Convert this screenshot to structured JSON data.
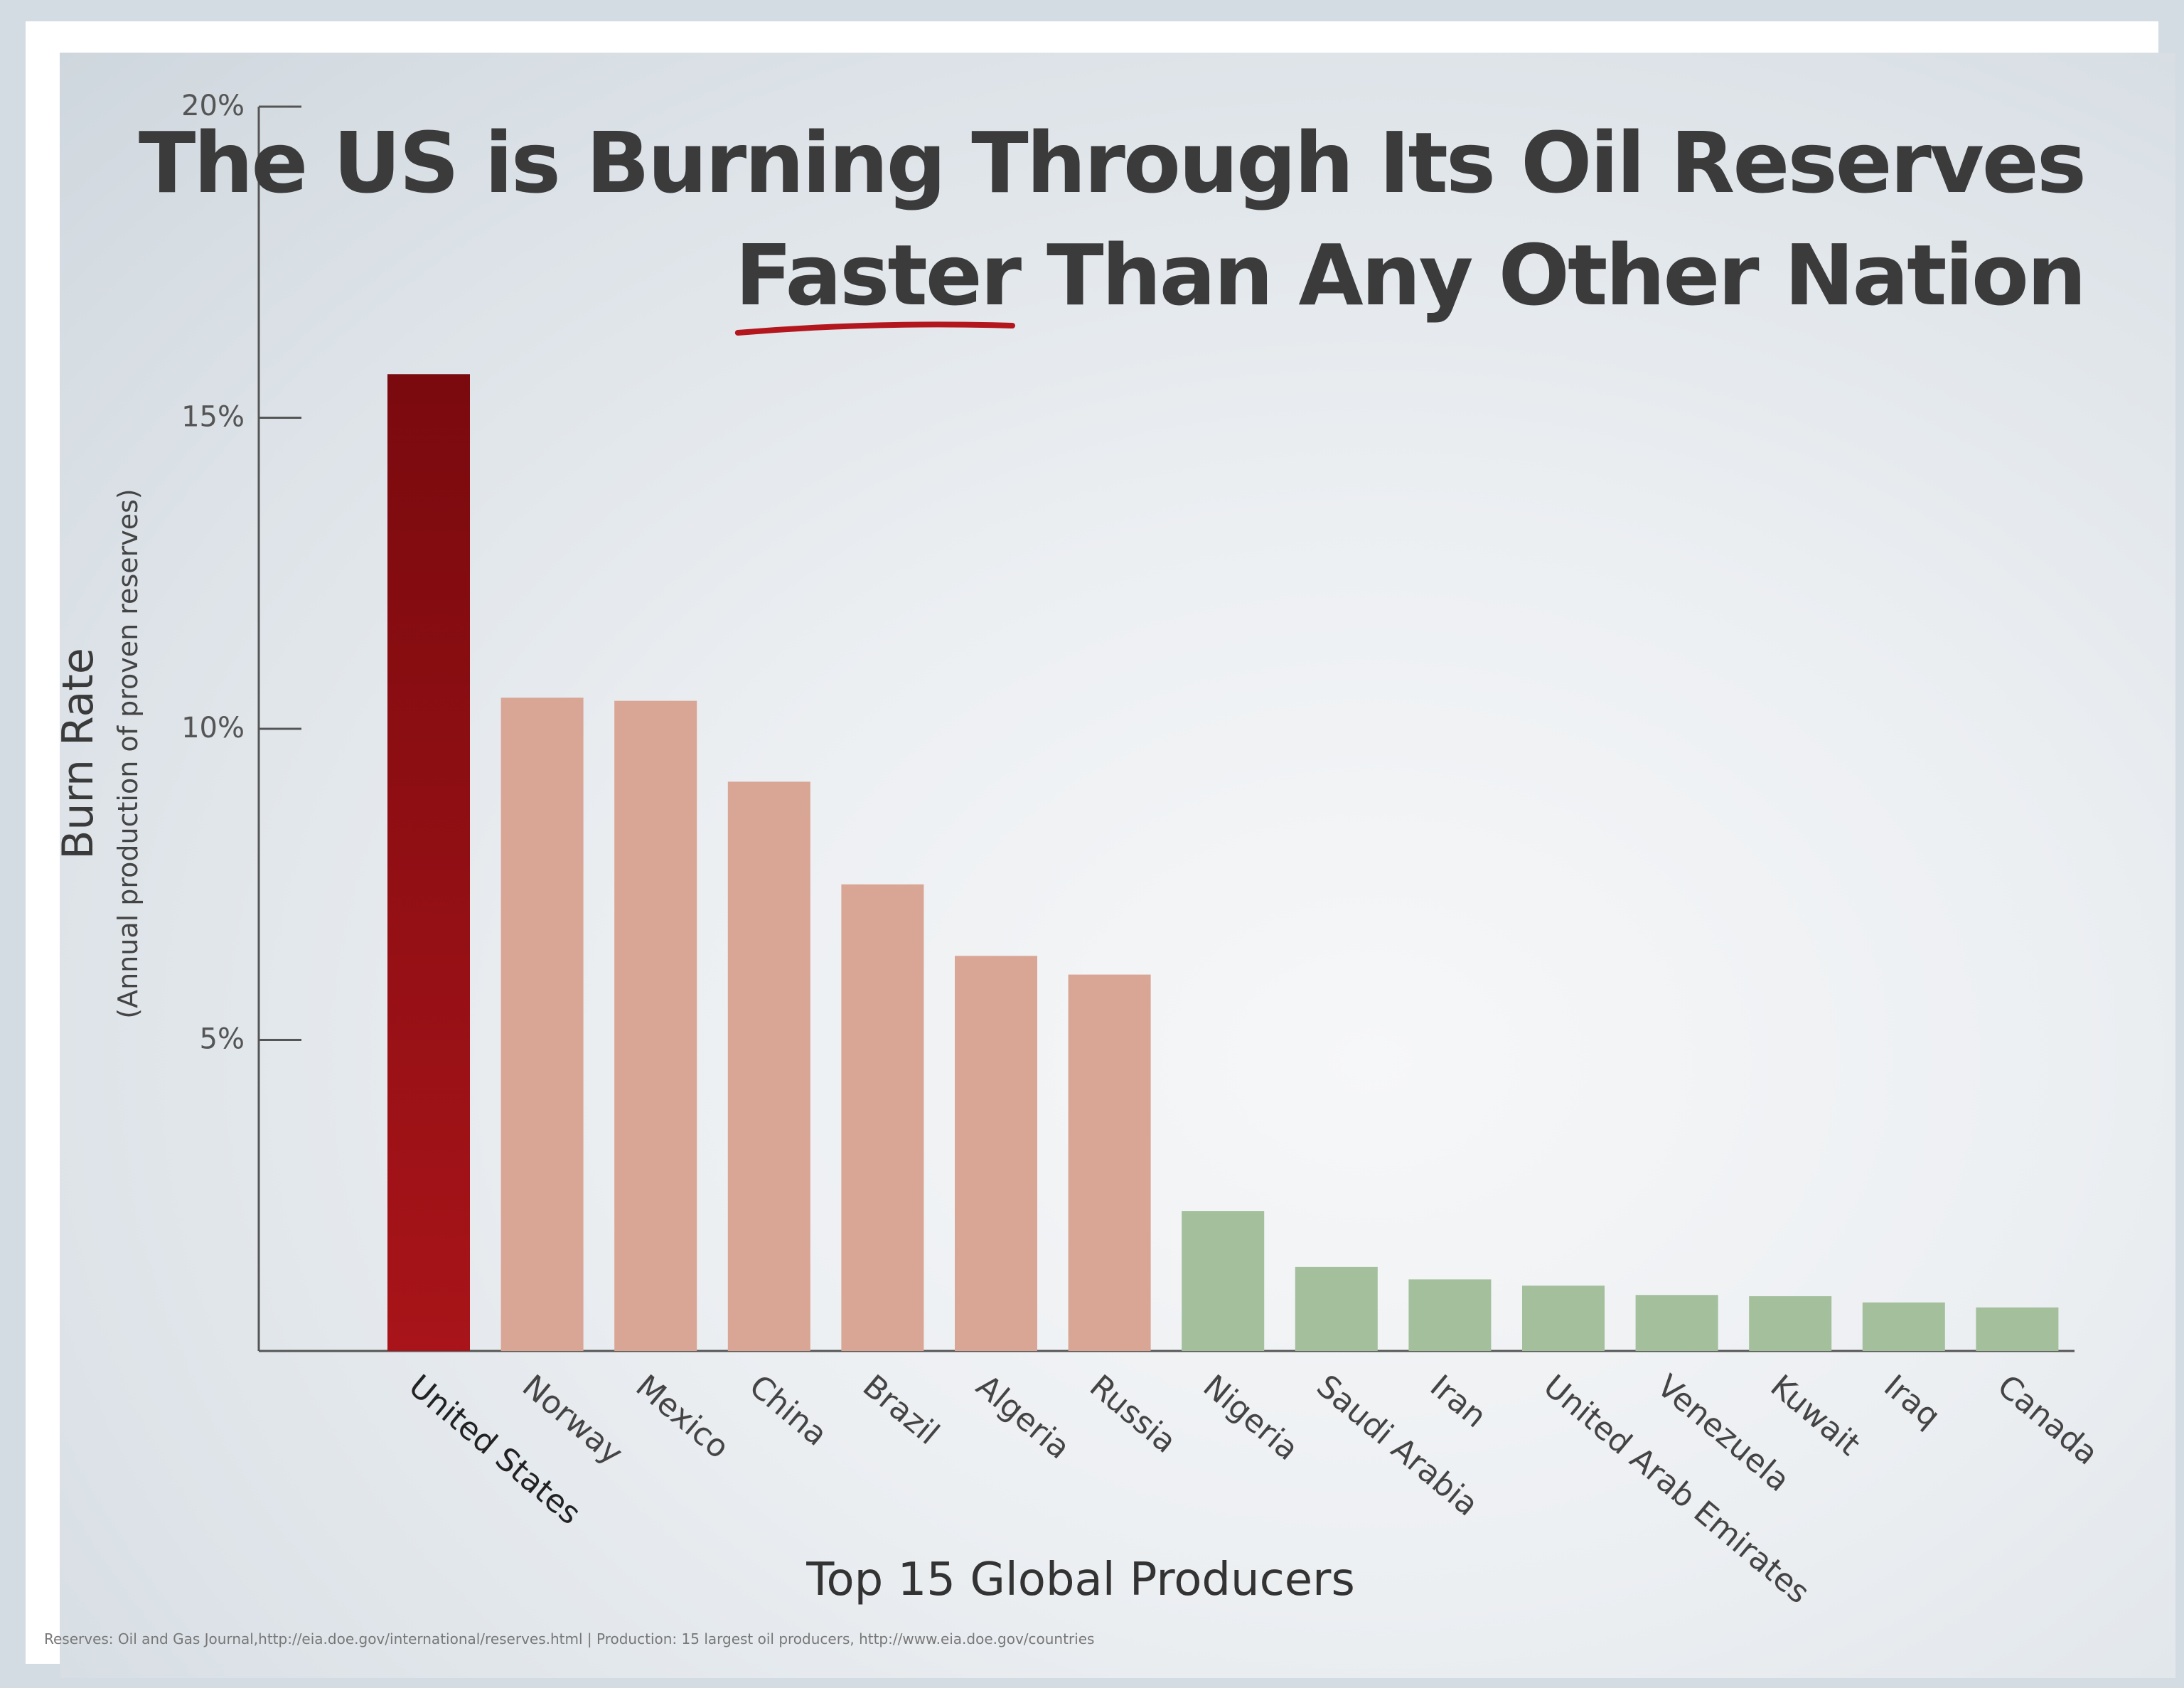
{
  "chart_data": {
    "type": "bar",
    "title_line1": "The US is Burning Through Its Oil Reserves",
    "title_line2_emphasis": "Faster",
    "title_line2_rest": " Than Any Other Nation",
    "ylabel": "Burn Rate",
    "ylabel_sub": "(Annual production of proven reserves)",
    "xlabel": "Top 15 Global Producers",
    "yticks": [
      "20%",
      "15%",
      "10%",
      "5%"
    ],
    "ytick_values": [
      20,
      15,
      10,
      5
    ],
    "ylim": [
      0,
      20
    ],
    "categories": [
      "United States",
      "Norway",
      "Mexico",
      "China",
      "Brazil",
      "Algeria",
      "Russia",
      "Nigeria",
      "Saudi Arabia",
      "Iran",
      "United Arab Emirates",
      "Venezuela",
      "Kuwait",
      "Iraq",
      "Canada"
    ],
    "values": [
      15.7,
      10.5,
      10.45,
      9.15,
      7.5,
      6.35,
      6.05,
      2.25,
      1.35,
      1.15,
      1.05,
      0.9,
      0.88,
      0.78,
      0.7
    ],
    "groups": [
      "highlight",
      "high",
      "high",
      "high",
      "high",
      "high",
      "high",
      "low",
      "low",
      "low",
      "low",
      "low",
      "low",
      "low",
      "low"
    ],
    "colors": {
      "highlight_top": "#7a0a0e",
      "highlight_bottom": "#a81419",
      "high": "#d9a594",
      "low": "#a3bf9c",
      "underline": "#b3161d",
      "axis": "#555555"
    },
    "grid": false,
    "legend": "none",
    "source": "Reserves: Oil and Gas Journal,http://eia.doe.gov/international/reserves.html | Production: 15 largest oil producers, http://www.eia.doe.gov/countries"
  }
}
